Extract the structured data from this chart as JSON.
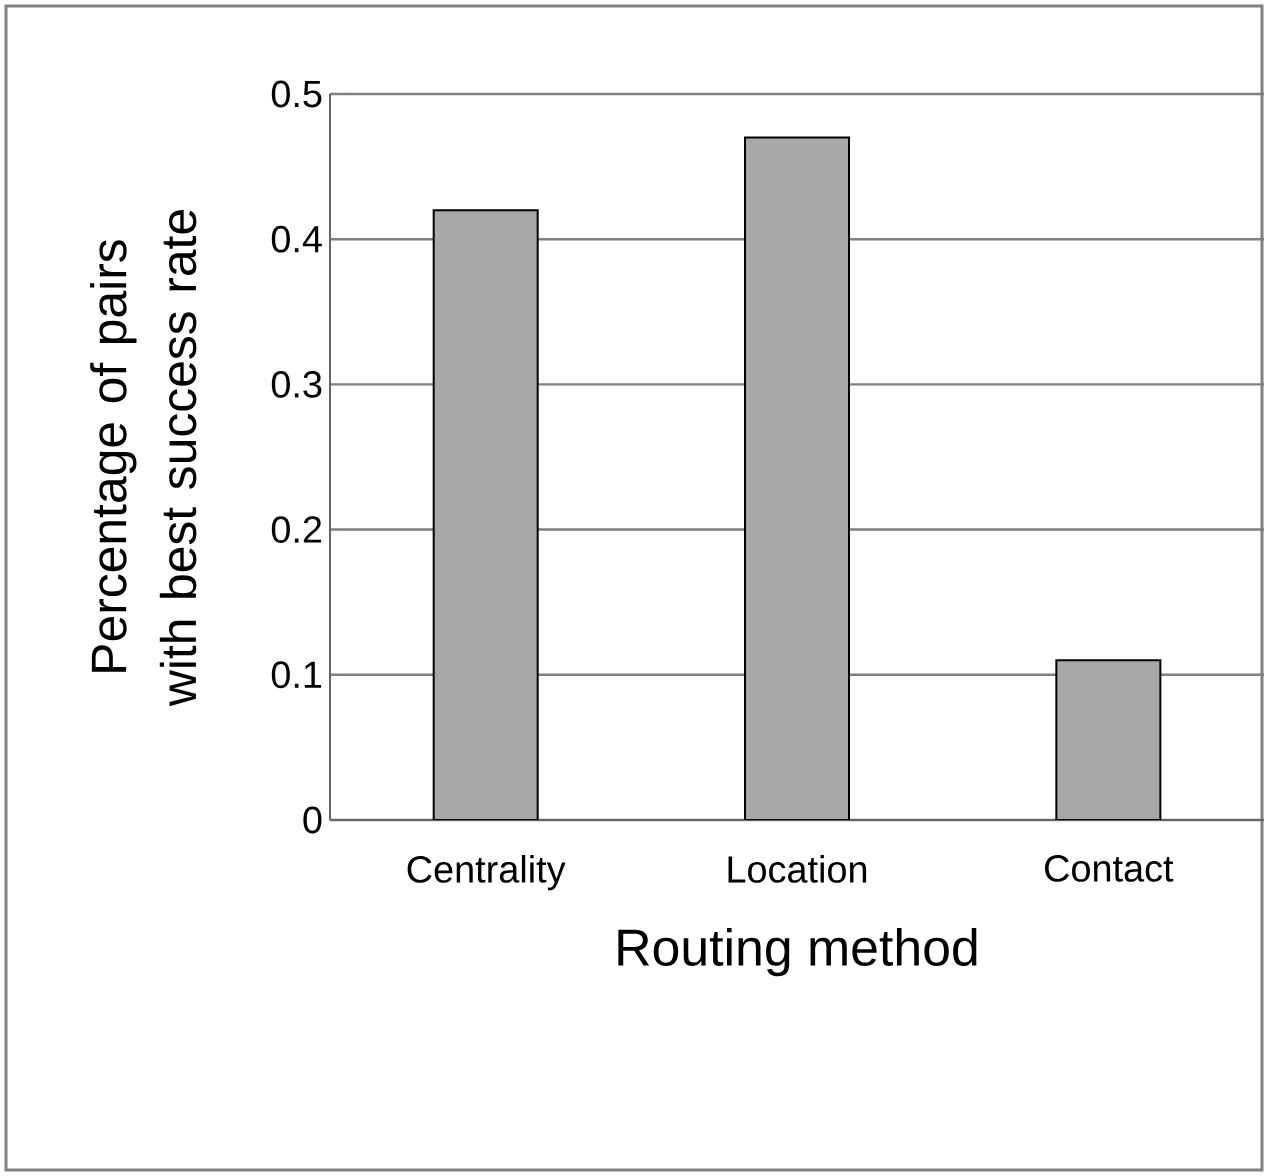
{
  "chart_data": {
    "type": "bar",
    "xlabel": "Routing method",
    "ylabel": "Percentage of pairs with best success rate",
    "categories": [
      "Centrality",
      "Location",
      "Contact"
    ],
    "values": [
      0.42,
      0.47,
      0.11
    ],
    "color": "#a8a8a8",
    "ylim": [
      0,
      0.5
    ],
    "yticks": [
      0,
      0.1,
      0.2,
      0.3,
      0.4,
      0.5
    ],
    "grid": "y"
  }
}
